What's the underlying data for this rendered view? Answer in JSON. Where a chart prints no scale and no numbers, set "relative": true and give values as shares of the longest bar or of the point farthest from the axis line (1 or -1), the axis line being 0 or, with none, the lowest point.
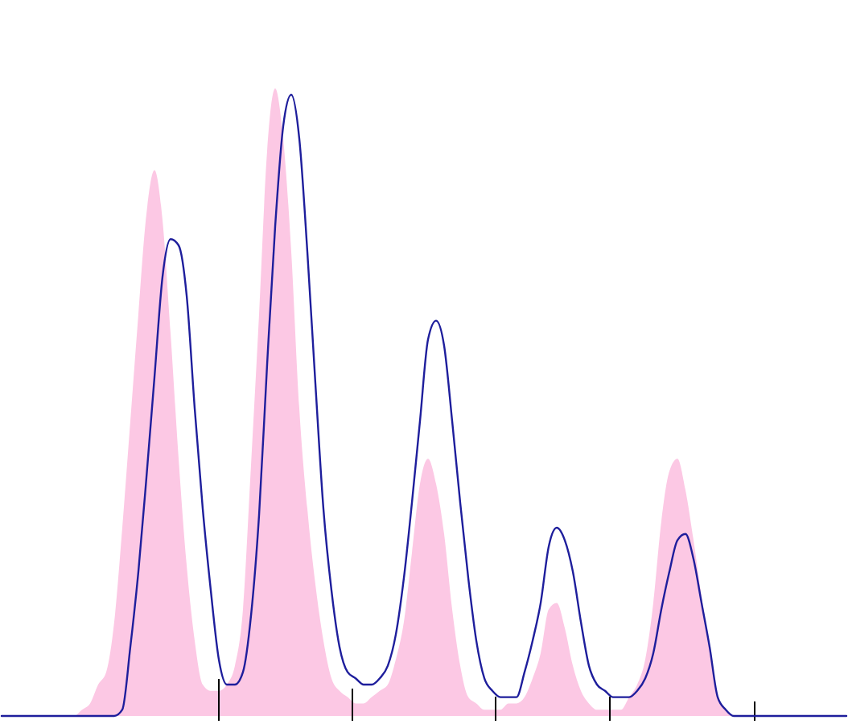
{
  "chart_data": {
    "type": "area",
    "relative": true,
    "categories": [
      null,
      null,
      null,
      null,
      null,
      null,
      null,
      null,
      null,
      null,
      null,
      null,
      null,
      null,
      null,
      null,
      null,
      null,
      null,
      null,
      null,
      null,
      null,
      null,
      null,
      null,
      null,
      null,
      null,
      null,
      null,
      null,
      null,
      null,
      null,
      null,
      null,
      null,
      null,
      null,
      null,
      null,
      null,
      null,
      null,
      null,
      null,
      null,
      null,
      null,
      null,
      null,
      null,
      null,
      null,
      null,
      null,
      null,
      null,
      null,
      null,
      null,
      null,
      null,
      null,
      null,
      null,
      null,
      null,
      null,
      null,
      null,
      null,
      null,
      null,
      null,
      null,
      null,
      null,
      null,
      null,
      null,
      null,
      null,
      null,
      null,
      null,
      null,
      null,
      null,
      null,
      null,
      null,
      null,
      null,
      null,
      null,
      null,
      null,
      null,
      null,
      null,
      null,
      null,
      null,
      null
    ],
    "series": [
      {
        "color": "#fcc8e4",
        "values": [
          0,
          0,
          0,
          0,
          0,
          0,
          0,
          0,
          0,
          0,
          0.01,
          0.02,
          0.05,
          0.07,
          0.15,
          0.3,
          0.47,
          0.64,
          0.8,
          0.87,
          0.79,
          0.61,
          0.41,
          0.24,
          0.12,
          0.05,
          0.04,
          0.04,
          0.05,
          0.08,
          0.17,
          0.4,
          0.64,
          0.9,
          1,
          0.92,
          0.74,
          0.49,
          0.33,
          0.21,
          0.12,
          0.06,
          0.04,
          0.03,
          0.02,
          0.02,
          0.03,
          0.04,
          0.05,
          0.09,
          0.15,
          0.26,
          0.37,
          0.41,
          0.37,
          0.29,
          0.17,
          0.08,
          0.03,
          0.02,
          0.01,
          0.01,
          0.01,
          0.02,
          0.02,
          0.03,
          0.06,
          0.1,
          0.17,
          0.18,
          0.14,
          0.08,
          0.04,
          0.02,
          0.01,
          0.01,
          0.01,
          0.01,
          0.03,
          0.05,
          0.09,
          0.18,
          0.31,
          0.39,
          0.41,
          0.36,
          0.28,
          0.19,
          0.11,
          0.03,
          0.01,
          0,
          0,
          0,
          0,
          0,
          0,
          0,
          0,
          0,
          0,
          0,
          0,
          0,
          0,
          0
        ]
      },
      {
        "type": "line",
        "color": "#1e1e9c",
        "values": [
          0,
          0,
          0,
          0,
          0,
          0,
          0,
          0,
          0,
          0,
          0,
          0,
          0,
          0,
          0,
          0.01,
          0.11,
          0.23,
          0.38,
          0.54,
          0.7,
          0.76,
          0.75,
          0.67,
          0.49,
          0.33,
          0.2,
          0.09,
          0.05,
          0.05,
          0.07,
          0.16,
          0.32,
          0.56,
          0.78,
          0.94,
          0.99,
          0.92,
          0.74,
          0.53,
          0.33,
          0.2,
          0.11,
          0.07,
          0.06,
          0.05,
          0.05,
          0.06,
          0.08,
          0.13,
          0.22,
          0.34,
          0.47,
          0.6,
          0.63,
          0.59,
          0.47,
          0.34,
          0.22,
          0.12,
          0.06,
          0.04,
          0.03,
          0.03,
          0.03,
          0.07,
          0.12,
          0.18,
          0.27,
          0.3,
          0.28,
          0.23,
          0.15,
          0.08,
          0.05,
          0.04,
          0.03,
          0.03,
          0.03,
          0.04,
          0.06,
          0.1,
          0.17,
          0.23,
          0.28,
          0.29,
          0.25,
          0.18,
          0.11,
          0.03,
          0.01,
          0,
          0,
          0,
          0,
          0,
          0,
          0,
          0,
          0,
          0,
          0,
          0,
          0,
          0,
          0
        ]
      }
    ]
  }
}
